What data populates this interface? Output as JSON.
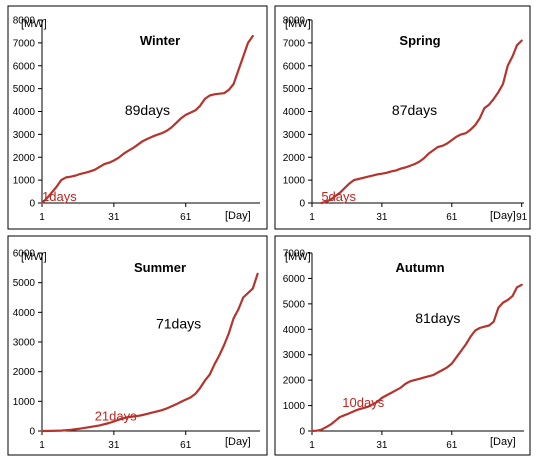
{
  "colors": {
    "series": "#b5342e",
    "red_annotation": "#c0251f"
  },
  "chart_data": [
    {
      "type": "line",
      "title": "Winter",
      "ylabel": "[MW]",
      "xlabel": "[Day]",
      "ylim": [
        0,
        8000
      ],
      "xlim": [
        1,
        92
      ],
      "yticks": [
        0,
        1000,
        2000,
        3000,
        4000,
        5000,
        6000,
        7000,
        8000
      ],
      "xticks": [
        {
          "value": 1,
          "label": "1"
        },
        {
          "value": 31,
          "label": "31"
        },
        {
          "value": 61,
          "label": "61"
        }
      ],
      "annotations": [
        {
          "text": "89days",
          "x": 45,
          "y": 3850,
          "color": "black"
        },
        {
          "text": "1days",
          "x": 1,
          "y": 80,
          "color": "red"
        }
      ],
      "series": [
        {
          "x": [
            1,
            3,
            5,
            7,
            9,
            11,
            13,
            15,
            17,
            19,
            21,
            23,
            25,
            27,
            29,
            31,
            33,
            35,
            37,
            39,
            41,
            43,
            45,
            47,
            49,
            51,
            53,
            55,
            57,
            59,
            61,
            63,
            65,
            67,
            69,
            71,
            73,
            75,
            77,
            79,
            81,
            83,
            85,
            87,
            89
          ],
          "y": [
            0,
            200,
            450,
            700,
            1000,
            1120,
            1150,
            1200,
            1270,
            1320,
            1380,
            1450,
            1580,
            1700,
            1760,
            1860,
            1980,
            2150,
            2280,
            2400,
            2550,
            2700,
            2800,
            2900,
            2980,
            3050,
            3150,
            3300,
            3500,
            3700,
            3850,
            3950,
            4050,
            4250,
            4550,
            4700,
            4750,
            4780,
            4800,
            4950,
            5200,
            5800,
            6400,
            7000,
            7300
          ]
        }
      ]
    },
    {
      "type": "line",
      "title": "Spring",
      "ylabel": "[MW]",
      "xlabel": "[Day]",
      "ylim": [
        0,
        8000
      ],
      "xlim": [
        1,
        92
      ],
      "yticks": [
        0,
        1000,
        2000,
        3000,
        4000,
        5000,
        6000,
        7000,
        8000
      ],
      "xticks": [
        {
          "value": 1,
          "label": "1"
        },
        {
          "value": 31,
          "label": "31"
        },
        {
          "value": 61,
          "label": "61"
        },
        {
          "value": 91,
          "label": "91"
        }
      ],
      "annotations": [
        {
          "text": "87days",
          "x": 45,
          "y": 3850,
          "color": "black"
        },
        {
          "text": "5days",
          "x": 5,
          "y": 80,
          "color": "red"
        }
      ],
      "series": [
        {
          "x": [
            5,
            7,
            9,
            11,
            13,
            15,
            17,
            19,
            21,
            23,
            25,
            27,
            29,
            31,
            33,
            35,
            37,
            39,
            41,
            43,
            45,
            47,
            49,
            51,
            53,
            55,
            57,
            59,
            61,
            63,
            65,
            67,
            69,
            71,
            73,
            75,
            77,
            79,
            81,
            83,
            85,
            87,
            89,
            91
          ],
          "y": [
            0,
            50,
            150,
            300,
            450,
            650,
            850,
            1000,
            1050,
            1100,
            1150,
            1200,
            1250,
            1280,
            1320,
            1380,
            1420,
            1500,
            1550,
            1620,
            1700,
            1800,
            1950,
            2150,
            2300,
            2450,
            2500,
            2600,
            2750,
            2900,
            3000,
            3050,
            3200,
            3400,
            3700,
            4150,
            4300,
            4550,
            4850,
            5200,
            6000,
            6400,
            6900,
            7100
          ]
        }
      ]
    },
    {
      "type": "line",
      "title": "Summer",
      "ylabel": "[MW]",
      "xlabel": "[Day]",
      "ylim": [
        0,
        6000
      ],
      "xlim": [
        1,
        92
      ],
      "yticks": [
        0,
        1000,
        2000,
        3000,
        4000,
        5000,
        6000
      ],
      "xticks": [
        {
          "value": 1,
          "label": "1"
        },
        {
          "value": 31,
          "label": "31"
        },
        {
          "value": 61,
          "label": "61"
        }
      ],
      "annotations": [
        {
          "text": "71days",
          "x": 58,
          "y": 3450,
          "color": "black"
        },
        {
          "text": "21days",
          "x": 23,
          "y": 360,
          "color": "red"
        }
      ],
      "series": [
        {
          "x": [
            1,
            5,
            9,
            13,
            17,
            21,
            25,
            29,
            31,
            33,
            35,
            37,
            39,
            41,
            43,
            45,
            47,
            49,
            51,
            53,
            55,
            57,
            59,
            61,
            63,
            65,
            67,
            69,
            71,
            73,
            75,
            77,
            79,
            81,
            83,
            85,
            87,
            89,
            91
          ],
          "y": [
            0,
            5,
            15,
            40,
            80,
            130,
            190,
            270,
            320,
            380,
            430,
            470,
            490,
            510,
            540,
            580,
            620,
            660,
            700,
            760,
            830,
            900,
            980,
            1060,
            1130,
            1250,
            1450,
            1700,
            1900,
            2250,
            2550,
            2900,
            3300,
            3800,
            4100,
            4500,
            4650,
            4800,
            5300
          ]
        }
      ]
    },
    {
      "type": "line",
      "title": "Autumn",
      "ylabel": "[MW]",
      "xlabel": "[Day]",
      "ylim": [
        0,
        7000
      ],
      "xlim": [
        1,
        92
      ],
      "yticks": [
        0,
        1000,
        2000,
        3000,
        4000,
        5000,
        6000,
        7000
      ],
      "xticks": [
        {
          "value": 1,
          "label": "1"
        },
        {
          "value": 31,
          "label": "31"
        },
        {
          "value": 61,
          "label": "61"
        }
      ],
      "annotations": [
        {
          "text": "81days",
          "x": 55,
          "y": 4250,
          "color": "black"
        },
        {
          "text": "10days",
          "x": 14,
          "y": 950,
          "color": "red"
        }
      ],
      "series": [
        {
          "x": [
            1,
            3,
            5,
            7,
            9,
            11,
            13,
            15,
            17,
            19,
            21,
            23,
            25,
            27,
            29,
            31,
            33,
            35,
            37,
            39,
            41,
            43,
            45,
            47,
            49,
            51,
            53,
            55,
            57,
            59,
            61,
            63,
            65,
            67,
            69,
            71,
            73,
            75,
            77,
            79,
            81,
            83,
            85,
            87,
            89,
            91
          ],
          "y": [
            0,
            10,
            50,
            150,
            250,
            400,
            550,
            620,
            700,
            780,
            850,
            900,
            950,
            1050,
            1150,
            1300,
            1400,
            1500,
            1600,
            1700,
            1850,
            1950,
            2000,
            2050,
            2100,
            2150,
            2200,
            2300,
            2400,
            2500,
            2650,
            2900,
            3150,
            3400,
            3700,
            3950,
            4050,
            4100,
            4150,
            4300,
            4850,
            5050,
            5150,
            5300,
            5650,
            5750
          ]
        }
      ]
    }
  ]
}
